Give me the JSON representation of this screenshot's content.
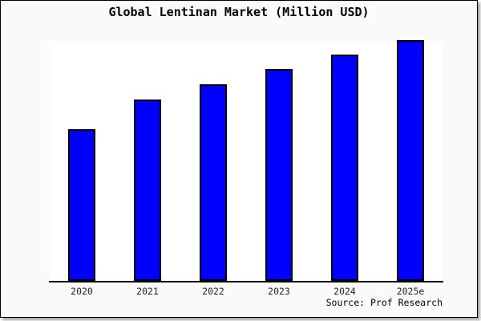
{
  "figure": {
    "title": "Global Lentinan Market (Million USD)",
    "source_label": "Source: Prof Research"
  },
  "chart_data": {
    "type": "bar",
    "title": "Global Lentinan Market (Million USD)",
    "categories": [
      "2020",
      "2021",
      "2022",
      "2023",
      "2024",
      "2025e"
    ],
    "values": [
      63.0,
      75.3,
      81.8,
      87.9,
      93.9,
      100.0
    ],
    "value_note": "No y-axis ticks or data labels shown in image; values are relative bar heights as % of tallest (2025e) bar",
    "xlabel": "",
    "ylabel": "",
    "ylim": [
      0,
      100
    ],
    "grid": false,
    "legend": false,
    "y_axis_visible": false,
    "source_annotation": "Source: Prof Research",
    "colors": {
      "bar_fill": "#0000ff",
      "bar_border": "#000000",
      "plot_background": "#ffffff",
      "figure_background": "#fafafa",
      "frame_border": "#000000",
      "title_text": "#000000",
      "axis_line": "#000000"
    }
  }
}
